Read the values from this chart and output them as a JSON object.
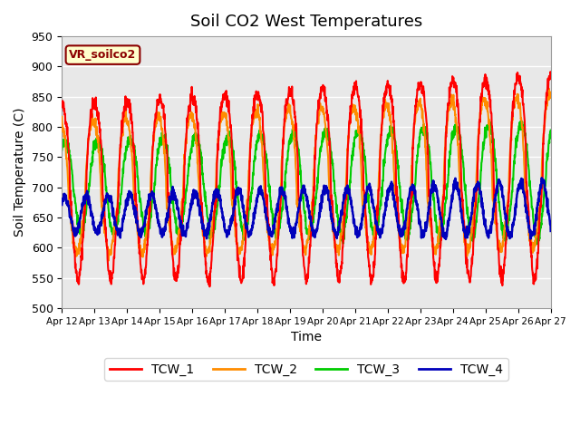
{
  "title": "Soil CO2 West Temperatures",
  "xlabel": "Time",
  "ylabel": "Soil Temperature (C)",
  "xlim": [
    0,
    15
  ],
  "ylim": [
    500,
    950
  ],
  "yticks": [
    500,
    550,
    600,
    650,
    700,
    750,
    800,
    850,
    900,
    950
  ],
  "xtick_labels": [
    "Apr 12",
    "Apr 13",
    "Apr 14",
    "Apr 15",
    "Apr 16",
    "Apr 17",
    "Apr 18",
    "Apr 19",
    "Apr 20",
    "Apr 21",
    "Apr 22",
    "Apr 23",
    "Apr 24",
    "Apr 25",
    "Apr 26",
    "Apr 27"
  ],
  "colors": {
    "TCW_1": "#FF0000",
    "TCW_2": "#FF8C00",
    "TCW_3": "#00CC00",
    "TCW_4": "#0000BB"
  },
  "legend_label": "VR_soilco2",
  "legend_box_facecolor": "#FFFFCC",
  "legend_box_edgecolor": "#8B0000",
  "plot_bg_color": "#E8E8E8",
  "linewidth": 1.5,
  "legend_entries": [
    "TCW_1",
    "TCW_2",
    "TCW_3",
    "TCW_4"
  ]
}
